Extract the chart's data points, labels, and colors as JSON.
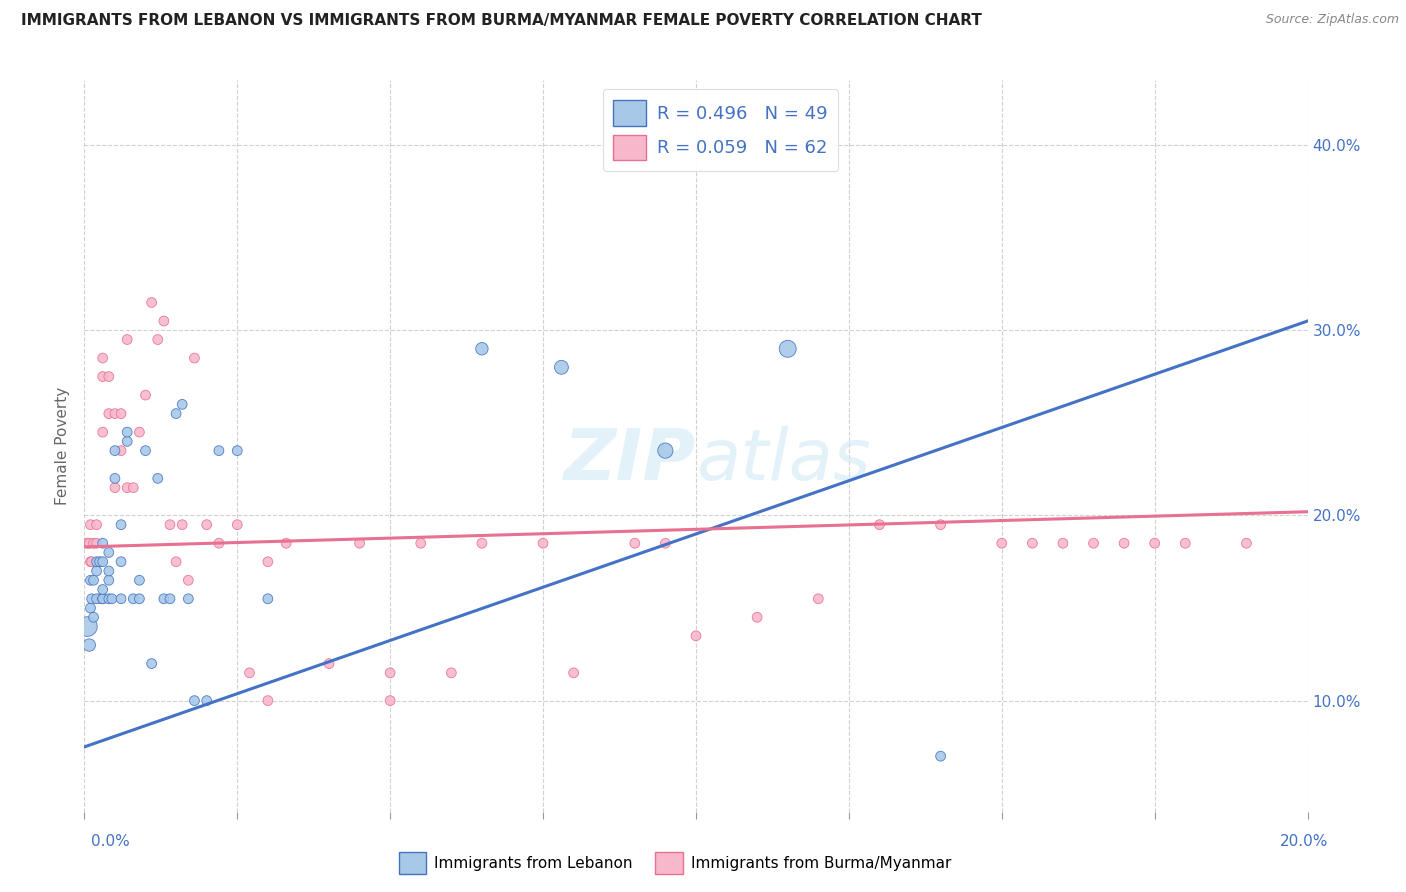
{
  "title": "IMMIGRANTS FROM LEBANON VS IMMIGRANTS FROM BURMA/MYANMAR FEMALE POVERTY CORRELATION CHART",
  "source": "Source: ZipAtlas.com",
  "ylabel": "Female Poverty",
  "xlim": [
    0.0,
    0.2
  ],
  "ylim": [
    0.04,
    0.435
  ],
  "yticks": [
    0.1,
    0.2,
    0.3,
    0.4
  ],
  "ytick_labels": [
    "10.0%",
    "20.0%",
    "30.0%",
    "40.0%"
  ],
  "watermark": "ZIPAtlas",
  "legend_r1": "R = 0.496   N = 49",
  "legend_r2": "R = 0.059   N = 62",
  "label1": "Immigrants from Lebanon",
  "label2": "Immigrants from Burma/Myanmar",
  "color1": "#a8c8e8",
  "color2": "#f8b8cc",
  "line_color1": "#4472c4",
  "line_color2": "#e87090",
  "lebanon_x": [
    0.0005,
    0.0008,
    0.001,
    0.001,
    0.0012,
    0.0015,
    0.0015,
    0.002,
    0.002,
    0.002,
    0.0025,
    0.003,
    0.003,
    0.003,
    0.003,
    0.003,
    0.004,
    0.004,
    0.004,
    0.004,
    0.0045,
    0.005,
    0.005,
    0.006,
    0.006,
    0.006,
    0.007,
    0.007,
    0.008,
    0.009,
    0.009,
    0.01,
    0.011,
    0.012,
    0.013,
    0.014,
    0.015,
    0.016,
    0.017,
    0.018,
    0.02,
    0.022,
    0.025,
    0.03,
    0.065,
    0.078,
    0.095,
    0.115,
    0.14
  ],
  "lebanon_y": [
    0.14,
    0.13,
    0.15,
    0.165,
    0.155,
    0.145,
    0.165,
    0.155,
    0.17,
    0.175,
    0.175,
    0.155,
    0.155,
    0.16,
    0.175,
    0.185,
    0.155,
    0.165,
    0.17,
    0.18,
    0.155,
    0.22,
    0.235,
    0.155,
    0.175,
    0.195,
    0.24,
    0.245,
    0.155,
    0.155,
    0.165,
    0.235,
    0.12,
    0.22,
    0.155,
    0.155,
    0.255,
    0.26,
    0.155,
    0.1,
    0.1,
    0.235,
    0.235,
    0.155,
    0.29,
    0.28,
    0.235,
    0.29,
    0.07
  ],
  "lebanon_sizes": [
    200,
    80,
    50,
    50,
    50,
    50,
    50,
    50,
    50,
    50,
    50,
    50,
    50,
    50,
    50,
    50,
    50,
    50,
    50,
    50,
    50,
    50,
    50,
    50,
    50,
    50,
    50,
    50,
    50,
    50,
    50,
    50,
    50,
    50,
    50,
    50,
    50,
    50,
    50,
    50,
    50,
    50,
    50,
    50,
    80,
    100,
    120,
    150,
    50
  ],
  "burma_x": [
    0.0005,
    0.0008,
    0.001,
    0.001,
    0.0012,
    0.0015,
    0.002,
    0.002,
    0.0025,
    0.003,
    0.003,
    0.003,
    0.004,
    0.004,
    0.005,
    0.005,
    0.006,
    0.006,
    0.007,
    0.007,
    0.008,
    0.009,
    0.01,
    0.011,
    0.012,
    0.013,
    0.014,
    0.015,
    0.016,
    0.017,
    0.018,
    0.02,
    0.022,
    0.025,
    0.027,
    0.03,
    0.033,
    0.04,
    0.045,
    0.05,
    0.055,
    0.06,
    0.065,
    0.075,
    0.08,
    0.09,
    0.095,
    0.1,
    0.11,
    0.12,
    0.13,
    0.14,
    0.15,
    0.155,
    0.16,
    0.165,
    0.17,
    0.175,
    0.18,
    0.19,
    0.03,
    0.05
  ],
  "burma_y": [
    0.185,
    0.185,
    0.175,
    0.195,
    0.175,
    0.185,
    0.185,
    0.195,
    0.155,
    0.245,
    0.275,
    0.285,
    0.255,
    0.275,
    0.215,
    0.255,
    0.235,
    0.255,
    0.215,
    0.295,
    0.215,
    0.245,
    0.265,
    0.315,
    0.295,
    0.305,
    0.195,
    0.175,
    0.195,
    0.165,
    0.285,
    0.195,
    0.185,
    0.195,
    0.115,
    0.175,
    0.185,
    0.12,
    0.185,
    0.115,
    0.185,
    0.115,
    0.185,
    0.185,
    0.115,
    0.185,
    0.185,
    0.135,
    0.145,
    0.155,
    0.195,
    0.195,
    0.185,
    0.185,
    0.185,
    0.185,
    0.185,
    0.185,
    0.185,
    0.185,
    0.1,
    0.1
  ],
  "burma_sizes": [
    50,
    50,
    50,
    50,
    50,
    50,
    50,
    50,
    50,
    50,
    50,
    50,
    50,
    50,
    50,
    50,
    50,
    50,
    50,
    50,
    50,
    50,
    50,
    50,
    50,
    50,
    50,
    50,
    50,
    50,
    50,
    50,
    50,
    50,
    50,
    50,
    50,
    50,
    50,
    50,
    50,
    50,
    50,
    50,
    50,
    50,
    50,
    50,
    50,
    50,
    50,
    50,
    50,
    50,
    50,
    50,
    50,
    50,
    50,
    50,
    50,
    50
  ],
  "leb_line_x": [
    0.0,
    0.2
  ],
  "leb_line_y": [
    0.075,
    0.305
  ],
  "bur_line_x": [
    0.0,
    0.2
  ],
  "bur_line_y": [
    0.183,
    0.202
  ]
}
